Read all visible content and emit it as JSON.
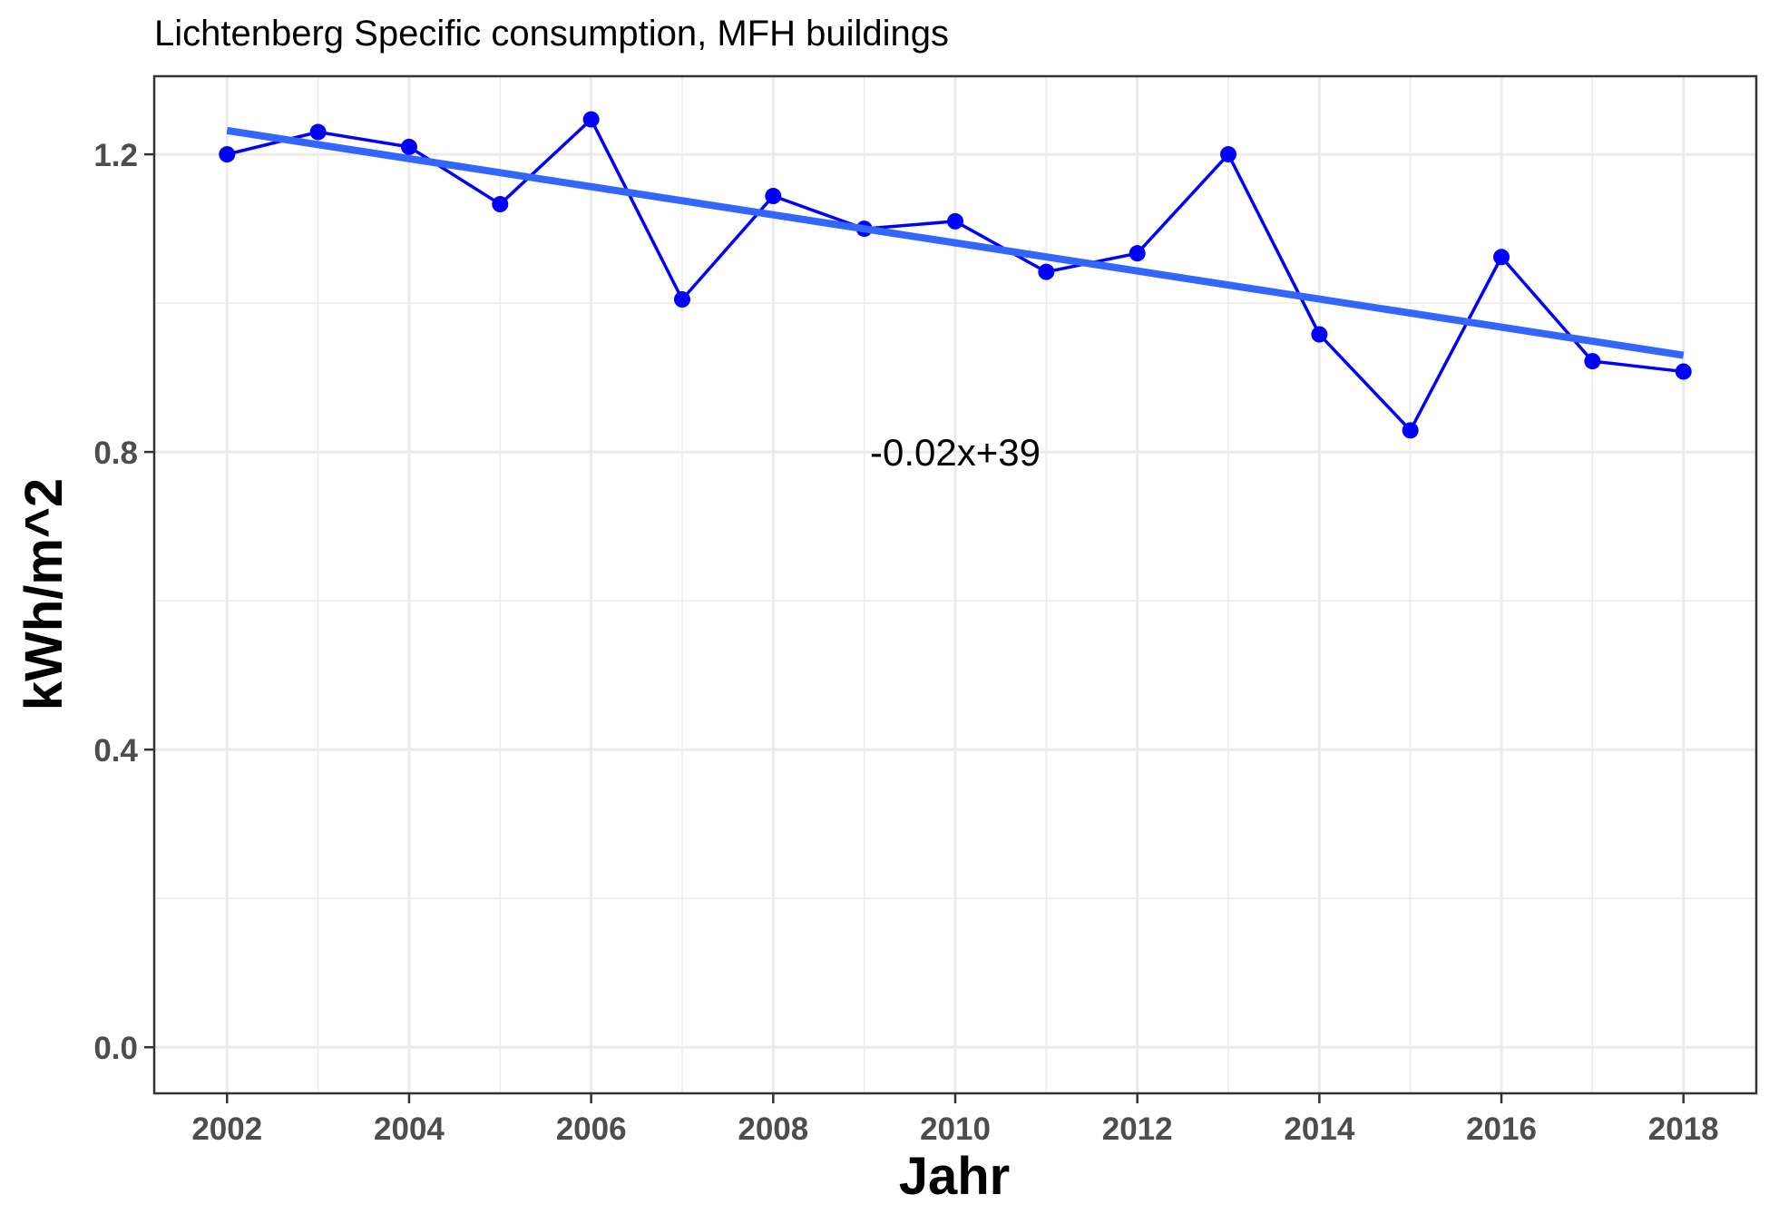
{
  "chart_data": {
    "type": "line",
    "title": "Lichtenberg Specific consumption, MFH buildings",
    "xlabel": "Jahr",
    "ylabel": "kWh/m^2",
    "xlim": [
      2001.2,
      2018.8
    ],
    "ylim": [
      -0.062,
      1.305
    ],
    "x_ticks": [
      2002,
      2004,
      2006,
      2008,
      2010,
      2012,
      2014,
      2016,
      2018
    ],
    "y_ticks": [
      0.0,
      0.4,
      0.8,
      1.2
    ],
    "x_tick_labels": [
      "2002",
      "2004",
      "2006",
      "2008",
      "2010",
      "2012",
      "2014",
      "2016",
      "2018"
    ],
    "y_tick_labels": [
      "0.0",
      "0.4",
      "0.8",
      "1.2"
    ],
    "grid": true,
    "series": [
      {
        "color": "#0000ff",
        "x": [
          2002,
          2003,
          2004,
          2005,
          2006,
          2007,
          2008,
          2009,
          2010,
          2011,
          2012,
          2013,
          2014,
          2015,
          2016,
          2017,
          2018
        ],
        "y": [
          1.2,
          1.23,
          1.21,
          1.133,
          1.247,
          1.005,
          1.144,
          1.1,
          1.11,
          1.042,
          1.067,
          1.2,
          0.958,
          0.829,
          1.062,
          0.922,
          0.908
        ]
      }
    ],
    "trend_line": {
      "color": "#3366ff",
      "x": [
        2002,
        2018
      ],
      "y": [
        1.232,
        0.93
      ]
    },
    "annotation": {
      "text": "-0.02x+39",
      "x": 2010,
      "y": 0.8
    }
  }
}
